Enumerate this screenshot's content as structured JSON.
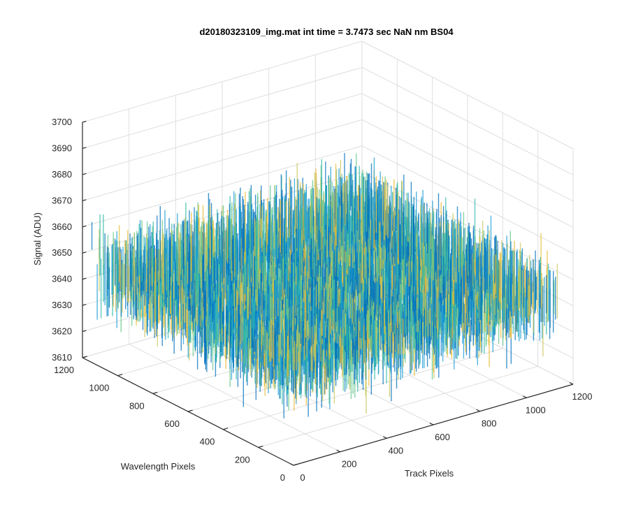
{
  "chart_data": {
    "type": "surface-3d",
    "title": "d20180323109_img.mat int time = 3.7473 sec  NaN nm BS04",
    "xlabel": "Track Pixels",
    "ylabel": "Wavelength Pixels",
    "zlabel": "Signal (ADU)",
    "xlim": [
      0,
      1200
    ],
    "ylim": [
      0,
      1200
    ],
    "zlim": [
      3610,
      3700
    ],
    "x_ticks": [
      "0",
      "200",
      "400",
      "600",
      "800",
      "1000",
      "1200"
    ],
    "y_ticks": [
      "0",
      "200",
      "400",
      "600",
      "800",
      "1000",
      "1200"
    ],
    "z_ticks": [
      "3610",
      "3620",
      "3630",
      "3640",
      "3650",
      "3660",
      "3670",
      "3680",
      "3690",
      "3700"
    ],
    "surface": {
      "x_range": [
        0,
        1152
      ],
      "y_range": [
        0,
        1152
      ],
      "mean_signal": 3648,
      "noise_min": 3612,
      "noise_max": 3690,
      "colormap": [
        "#0072BD",
        "#1a9bd6",
        "#2fb8a8",
        "#61c589",
        "#c9c55a",
        "#e8b930"
      ]
    },
    "grid": true
  }
}
